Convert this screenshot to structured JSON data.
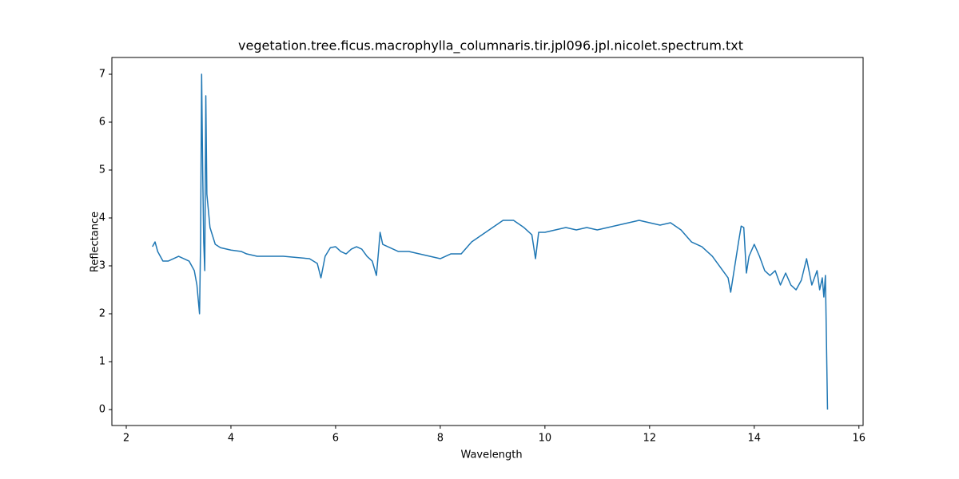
{
  "chart_data": {
    "type": "line",
    "title": "vegetation.tree.ficus.macrophylla_columnaris.tir.jpl096.jpl.nicolet.spectrum.txt",
    "x_label": "Wavelength",
    "y_label": "Reflectance",
    "xlim": [
      1.725,
      16.08
    ],
    "ylim": [
      -0.333,
      7.35
    ],
    "xticks": [
      2,
      4,
      6,
      8,
      10,
      12,
      14,
      16
    ],
    "yticks": [
      0,
      1,
      2,
      3,
      4,
      5,
      6,
      7
    ],
    "series": [
      {
        "color": "#1f77b4",
        "x": [
          2.5,
          2.55,
          2.6,
          2.65,
          2.7,
          2.8,
          2.9,
          3.0,
          3.1,
          3.2,
          3.3,
          3.35,
          3.4,
          3.42,
          3.44,
          3.46,
          3.48,
          3.5,
          3.52,
          3.54,
          3.6,
          3.7,
          3.8,
          4.0,
          4.2,
          4.3,
          4.5,
          5.0,
          5.5,
          5.65,
          5.72,
          5.8,
          5.9,
          6.0,
          6.1,
          6.2,
          6.3,
          6.4,
          6.5,
          6.6,
          6.7,
          6.78,
          6.82,
          6.85,
          6.9,
          7.0,
          7.1,
          7.2,
          7.4,
          7.6,
          7.8,
          8.0,
          8.2,
          8.4,
          8.6,
          8.8,
          9.0,
          9.2,
          9.4,
          9.6,
          9.75,
          9.82,
          9.88,
          10.0,
          10.2,
          10.4,
          10.6,
          10.8,
          11.0,
          11.2,
          11.4,
          11.6,
          11.8,
          12.0,
          12.2,
          12.4,
          12.6,
          12.8,
          13.0,
          13.2,
          13.4,
          13.5,
          13.55,
          13.6,
          13.7,
          13.75,
          13.8,
          13.85,
          13.9,
          14.0,
          14.1,
          14.2,
          14.3,
          14.4,
          14.5,
          14.6,
          14.7,
          14.8,
          14.9,
          15.0,
          15.1,
          15.2,
          15.25,
          15.3,
          15.33,
          15.36,
          15.4
        ],
        "values": [
          3.4,
          3.5,
          3.3,
          3.2,
          3.1,
          3.1,
          3.15,
          3.2,
          3.15,
          3.1,
          2.9,
          2.6,
          2.0,
          3.5,
          7.0,
          5.0,
          3.5,
          2.9,
          6.55,
          4.5,
          3.8,
          3.45,
          3.38,
          3.33,
          3.3,
          3.25,
          3.2,
          3.2,
          3.15,
          3.05,
          2.75,
          3.2,
          3.38,
          3.4,
          3.3,
          3.25,
          3.35,
          3.4,
          3.35,
          3.2,
          3.1,
          2.8,
          3.3,
          3.7,
          3.45,
          3.4,
          3.35,
          3.3,
          3.3,
          3.25,
          3.2,
          3.15,
          3.25,
          3.25,
          3.5,
          3.65,
          3.8,
          3.95,
          3.95,
          3.8,
          3.65,
          3.15,
          3.7,
          3.7,
          3.75,
          3.8,
          3.75,
          3.8,
          3.75,
          3.8,
          3.85,
          3.9,
          3.95,
          3.9,
          3.85,
          3.9,
          3.75,
          3.5,
          3.4,
          3.2,
          2.9,
          2.75,
          2.45,
          2.8,
          3.5,
          3.83,
          3.8,
          2.85,
          3.2,
          3.45,
          3.2,
          2.9,
          2.8,
          2.9,
          2.6,
          2.85,
          2.6,
          2.5,
          2.7,
          3.15,
          2.6,
          2.9,
          2.5,
          2.75,
          2.35,
          2.8,
          0.0
        ]
      }
    ]
  }
}
